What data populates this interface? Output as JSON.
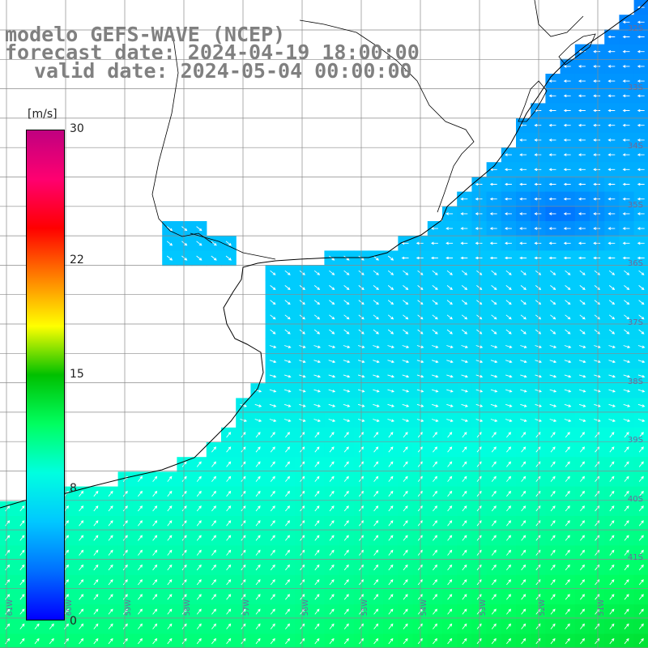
{
  "titles": {
    "model": "modelo GEFS-WAVE (NCEP)",
    "forecast": "forecast date: 2024-04-19 18:00:00",
    "valid": "valid date: 2024-05-04 00:00:00"
  },
  "colorbar": {
    "unit": "[m/s]",
    "ticks": [
      {
        "label": "30",
        "value": 30
      },
      {
        "label": "22",
        "value": 22
      },
      {
        "label": "15",
        "value": 15
      },
      {
        "label": "8",
        "value": 8
      },
      {
        "label": "0",
        "value": 0
      }
    ],
    "colors": [
      "#0000ff",
      "#0070ff",
      "#00c8ff",
      "#00ffe0",
      "#00ff60",
      "#00c000",
      "#ffff00",
      "#ff8000",
      "#ff0000",
      "#ff0070",
      "#c00080"
    ]
  },
  "grid": {
    "lat_labels": [
      "32S",
      "33S",
      "34S",
      "35S",
      "36S",
      "37S",
      "38S",
      "39S",
      "40S",
      "41S"
    ],
    "lon_labels": [
      "61W",
      "60W",
      "59W",
      "58W",
      "57W",
      "56W",
      "55W",
      "54W",
      "53W",
      "52W",
      "51W"
    ]
  },
  "field": {
    "variable": "wind speed",
    "arrow_color": "#ffffff",
    "land_color": "#ffffff",
    "coast_color": "#000000"
  }
}
